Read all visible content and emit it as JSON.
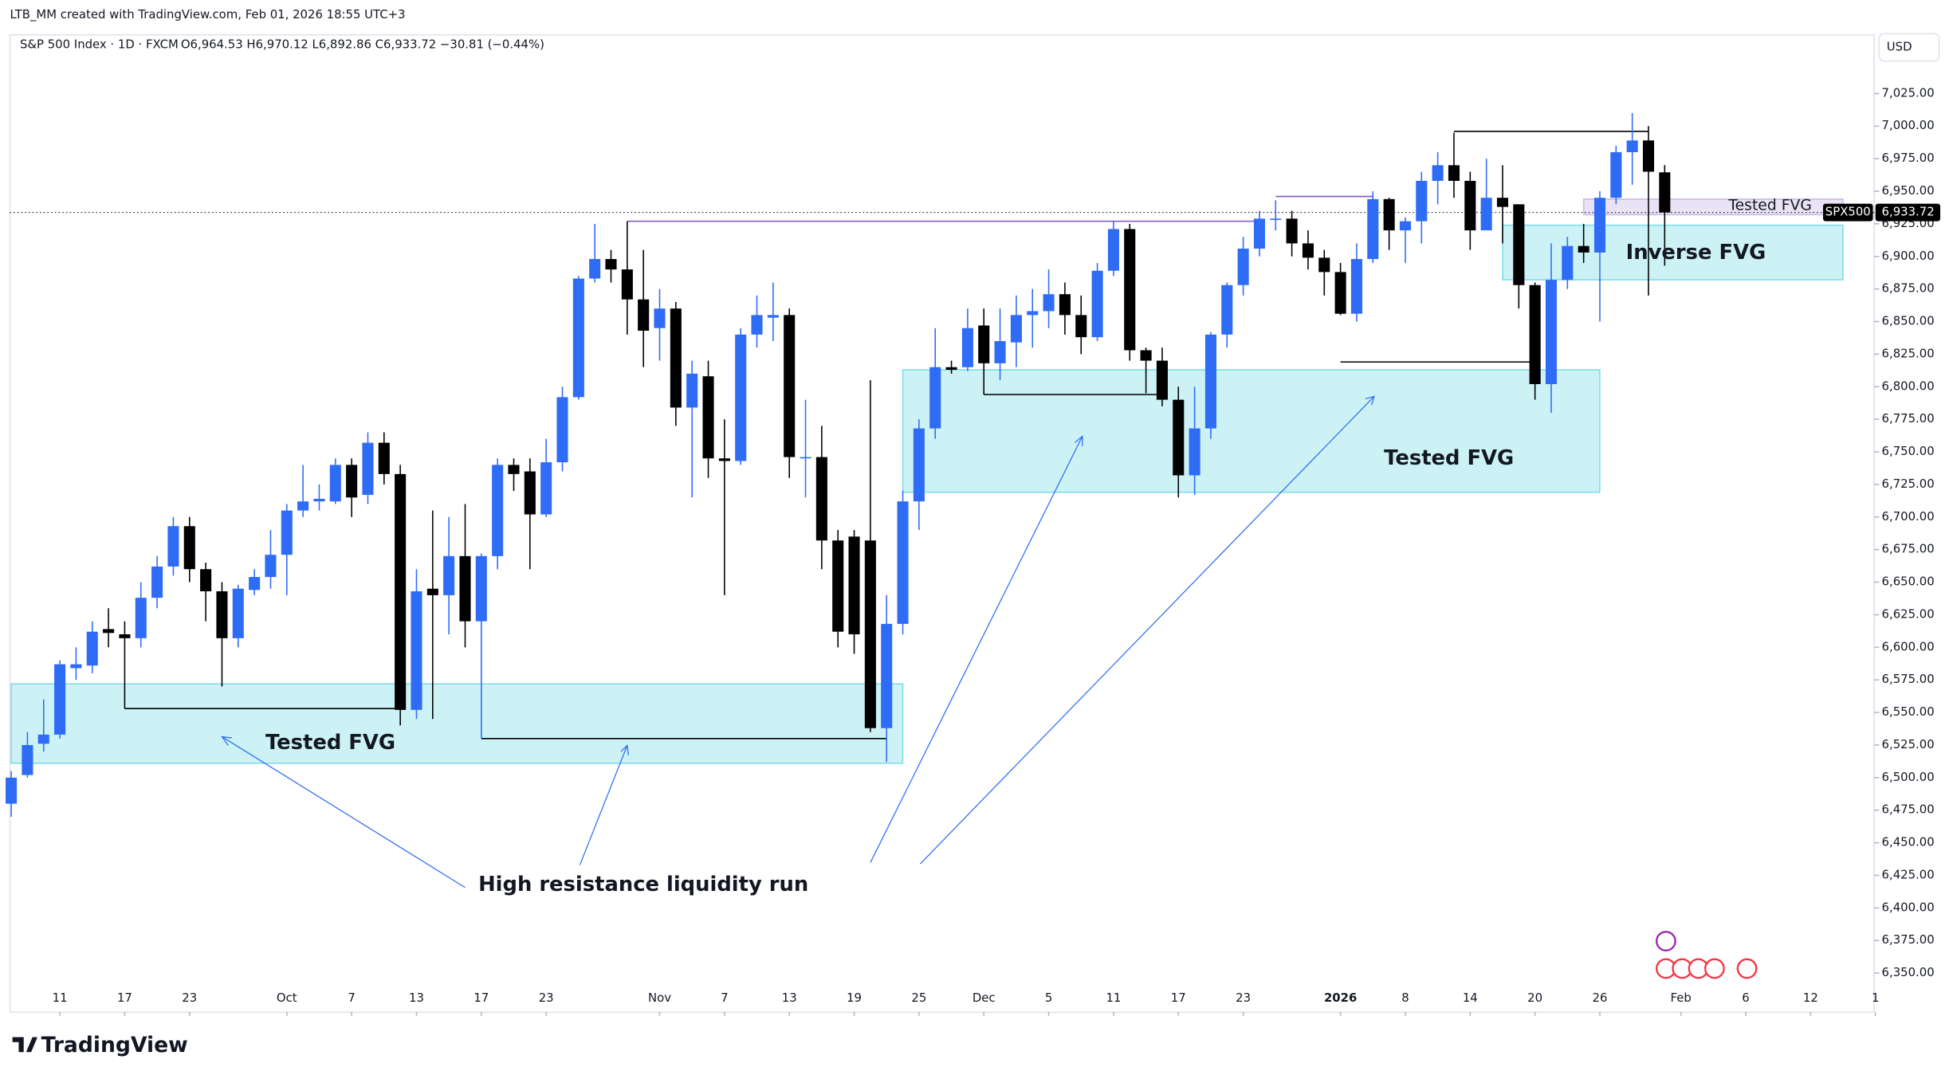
{
  "header": {
    "credit": "LTB_MM created with TradingView.com, Feb 01, 2026 18:55 UTC+3",
    "symbol": "S&P 500 Index · 1D · FXCM",
    "ohlc": "O6,964.53 H6,970.12 L6,892.86 C6,933.72 −30.81 (−0.44%)",
    "currency": "USD"
  },
  "logo": "TradingView",
  "chart_data": {
    "type": "candlestick",
    "up_color": "#2f6cf6",
    "down_color": "#000000",
    "open": [
      6480,
      6502,
      6526,
      6533,
      6584,
      6586,
      6614,
      6610,
      6607,
      6638,
      6662,
      6693,
      6660,
      6643,
      6607,
      6644,
      6654,
      6671,
      6705,
      6712,
      6712,
      6740,
      6717,
      6757,
      6733,
      6552,
      6645,
      6640,
      6670,
      6620,
      6670,
      6740,
      6735,
      6702,
      6742,
      6792,
      6883,
      6898,
      6890,
      6867,
      6845,
      6860,
      6784,
      6808,
      6745,
      6743,
      6840,
      6853,
      6855,
      6745,
      6746,
      6682,
      6685,
      6682,
      6538,
      6618,
      6712,
      6768,
      6815,
      6815,
      6847,
      6818,
      6834,
      6855,
      6858,
      6871,
      6855,
      6838,
      6889,
      6921,
      6828,
      6820,
      6790,
      6732,
      6768,
      6840,
      6878,
      6906,
      6928,
      6929,
      6910,
      6899,
      6888,
      6856,
      6898,
      6944,
      6920,
      6927,
      6958,
      6970,
      6958,
      6920,
      6945,
      6940,
      6878,
      6802,
      6882,
      6908,
      6903,
      6945,
      6980,
      6989,
      6964.53
    ],
    "high": [
      6505,
      6535,
      6560,
      6590,
      6600,
      6620,
      6630,
      6620,
      6650,
      6670,
      6700,
      6700,
      6665,
      6650,
      6648,
      6660,
      6690,
      6710,
      6740,
      6725,
      6745,
      6745,
      6765,
      6765,
      6740,
      6660,
      6705,
      6700,
      6710,
      6672,
      6745,
      6745,
      6745,
      6760,
      6800,
      6885,
      6925,
      6905,
      6927,
      6905,
      6875,
      6865,
      6820,
      6820,
      6775,
      6845,
      6870,
      6880,
      6860,
      6790,
      6770,
      6690,
      6690,
      6805,
      6640,
      6720,
      6775,
      6845,
      6820,
      6860,
      6860,
      6860,
      6870,
      6875,
      6890,
      6880,
      6870,
      6895,
      6927,
      6925,
      6830,
      6830,
      6800,
      6800,
      6842,
      6880,
      6915,
      6935,
      6943,
      6935,
      6920,
      6905,
      6895,
      6910,
      6950,
      6945,
      6930,
      6965,
      6980,
      6995,
      6965,
      6975,
      6970,
      6940,
      6880,
      6910,
      6915,
      6925,
      6950,
      6985,
      7010,
      7000,
      6970.12
    ],
    "low": [
      6470,
      6500,
      6520,
      6530,
      6575,
      6580,
      6600,
      6553,
      6600,
      6630,
      6655,
      6650,
      6620,
      6570,
      6600,
      6640,
      6645,
      6640,
      6700,
      6705,
      6710,
      6700,
      6710,
      6725,
      6540,
      6545,
      6545,
      6610,
      6600,
      6530,
      6660,
      6720,
      6660,
      6700,
      6735,
      6790,
      6880,
      6880,
      6840,
      6815,
      6820,
      6770,
      6715,
      6730,
      6640,
      6740,
      6830,
      6835,
      6730,
      6715,
      6660,
      6600,
      6595,
      6535,
      6512,
      6610,
      6690,
      6760,
      6810,
      6812,
      6794,
      6805,
      6815,
      6830,
      6845,
      6840,
      6825,
      6835,
      6885,
      6820,
      6795,
      6785,
      6715,
      6717,
      6760,
      6830,
      6870,
      6900,
      6920,
      6900,
      6890,
      6870,
      6855,
      6850,
      6895,
      6905,
      6895,
      6910,
      6940,
      6945,
      6905,
      6920,
      6910,
      6860,
      6790,
      6780,
      6875,
      6895,
      6850,
      6940,
      6955,
      6870,
      6892.86
    ],
    "close": [
      6500,
      6525,
      6533,
      6587,
      6587,
      6612,
      6611,
      6607,
      6638,
      6662,
      6693,
      6660,
      6643,
      6607,
      6645,
      6654,
      6671,
      6705,
      6712,
      6714,
      6740,
      6715,
      6757,
      6733,
      6552,
      6643,
      6640,
      6670,
      6620,
      6670,
      6740,
      6733,
      6702,
      6742,
      6792,
      6883,
      6898,
      6890,
      6867,
      6843,
      6860,
      6784,
      6810,
      6745,
      6743,
      6840,
      6855,
      6855,
      6746,
      6746,
      6682,
      6612,
      6610,
      6538,
      6618,
      6712,
      6768,
      6815,
      6813,
      6845,
      6818,
      6835,
      6855,
      6858,
      6871,
      6855,
      6838,
      6889,
      6921,
      6828,
      6820,
      6790,
      6732,
      6768,
      6840,
      6878,
      6906,
      6929,
      6929,
      6910,
      6899,
      6888,
      6856,
      6898,
      6944,
      6920,
      6927,
      6958,
      6970,
      6958,
      6920,
      6945,
      6938,
      6878,
      6802,
      6882,
      6908,
      6903,
      6945,
      6980,
      6989,
      6965,
      6933.72
    ],
    "price_tag": {
      "symbol": "SPX500",
      "label": "6,933.72"
    },
    "ylim": [
      6320,
      7070
    ],
    "yticks": [
      {
        "value": 7025,
        "label": "7,025.00"
      },
      {
        "value": 7000,
        "label": "7,000.00"
      },
      {
        "value": 6975,
        "label": "6,975.00"
      },
      {
        "value": 6950,
        "label": "6,950.00"
      },
      {
        "value": 6925,
        "label": "6,925.00"
      },
      {
        "value": 6900,
        "label": "6,900.00"
      },
      {
        "value": 6875,
        "label": "6,875.00"
      },
      {
        "value": 6850,
        "label": "6,850.00"
      },
      {
        "value": 6825,
        "label": "6,825.00"
      },
      {
        "value": 6800,
        "label": "6,800.00"
      },
      {
        "value": 6775,
        "label": "6,775.00"
      },
      {
        "value": 6750,
        "label": "6,750.00"
      },
      {
        "value": 6725,
        "label": "6,725.00"
      },
      {
        "value": 6700,
        "label": "6,700.00"
      },
      {
        "value": 6675,
        "label": "6,675.00"
      },
      {
        "value": 6650,
        "label": "6,650.00"
      },
      {
        "value": 6625,
        "label": "6,625.00"
      },
      {
        "value": 6600,
        "label": "6,600.00"
      },
      {
        "value": 6575,
        "label": "6,575.00"
      },
      {
        "value": 6550,
        "label": "6,550.00"
      },
      {
        "value": 6525,
        "label": "6,525.00"
      },
      {
        "value": 6500,
        "label": "6,500.00"
      },
      {
        "value": 6475,
        "label": "6,475.00"
      },
      {
        "value": 6450,
        "label": "6,450.00"
      },
      {
        "value": 6425,
        "label": "6,425.00"
      },
      {
        "value": 6400,
        "label": "6,400.00"
      },
      {
        "value": 6375,
        "label": "6,375.00"
      },
      {
        "value": 6350,
        "label": "6,350.00"
      }
    ],
    "xticks": [
      {
        "value": 3,
        "label": "11"
      },
      {
        "value": 7,
        "label": "17"
      },
      {
        "value": 11,
        "label": "23"
      },
      {
        "value": 17,
        "label": "Oct"
      },
      {
        "value": 21,
        "label": "7"
      },
      {
        "value": 25,
        "label": "13"
      },
      {
        "value": 29,
        "label": "17"
      },
      {
        "value": 33,
        "label": "23"
      },
      {
        "value": 40,
        "label": "Nov"
      },
      {
        "value": 44,
        "label": "7"
      },
      {
        "value": 48,
        "label": "13"
      },
      {
        "value": 52,
        "label": "19"
      },
      {
        "value": 56,
        "label": "25"
      },
      {
        "value": 60,
        "label": "Dec"
      },
      {
        "value": 64,
        "label": "5"
      },
      {
        "value": 68,
        "label": "11"
      },
      {
        "value": 72,
        "label": "17"
      },
      {
        "value": 76,
        "label": "23"
      },
      {
        "value": 82,
        "label": "2026",
        "bold": true
      },
      {
        "value": 86,
        "label": "8"
      },
      {
        "value": 90,
        "label": "14"
      },
      {
        "value": 94,
        "label": "20"
      },
      {
        "value": 98,
        "label": "26"
      },
      {
        "value": 103,
        "label": "Feb"
      },
      {
        "value": 107,
        "label": "6"
      },
      {
        "value": 111,
        "label": "12"
      },
      {
        "value": 115,
        "label": "1"
      }
    ],
    "zones": [
      {
        "label": "Tested FVG",
        "from": 0,
        "to": 55,
        "top": 6572,
        "bottom": 6511,
        "color": "#00bcd4"
      },
      {
        "label": "Tested FVG",
        "from": 55,
        "to": 98,
        "top": 6813,
        "bottom": 6719,
        "color": "#00bcd4"
      },
      {
        "label": "Inverse FVG",
        "from": 92,
        "to": 113,
        "top": 6924,
        "bottom": 6882,
        "color": "#00bcd4"
      },
      {
        "label": "Tested FVG",
        "from": 97,
        "to": 113,
        "top": 6944,
        "bottom": 6932,
        "color": "#9575cd"
      }
    ],
    "levels": [
      {
        "from": 7,
        "to": 24,
        "value": 6553,
        "color": "#000000"
      },
      {
        "from": 29,
        "to": 54,
        "value": 6530,
        "color": "#000000"
      },
      {
        "from": 38,
        "to": 77,
        "value": 6927,
        "color": "#7e57c2"
      },
      {
        "from": 60,
        "to": 71,
        "value": 6794,
        "color": "#000000"
      },
      {
        "from": 78,
        "to": 84,
        "value": 6946,
        "color": "#7e57c2"
      },
      {
        "from": 82,
        "to": 94,
        "value": 6819,
        "color": "#000000"
      },
      {
        "from": 89,
        "to": 101,
        "value": 6996,
        "color": "#000000"
      }
    ],
    "annotation": "High resistance liquidity run"
  }
}
